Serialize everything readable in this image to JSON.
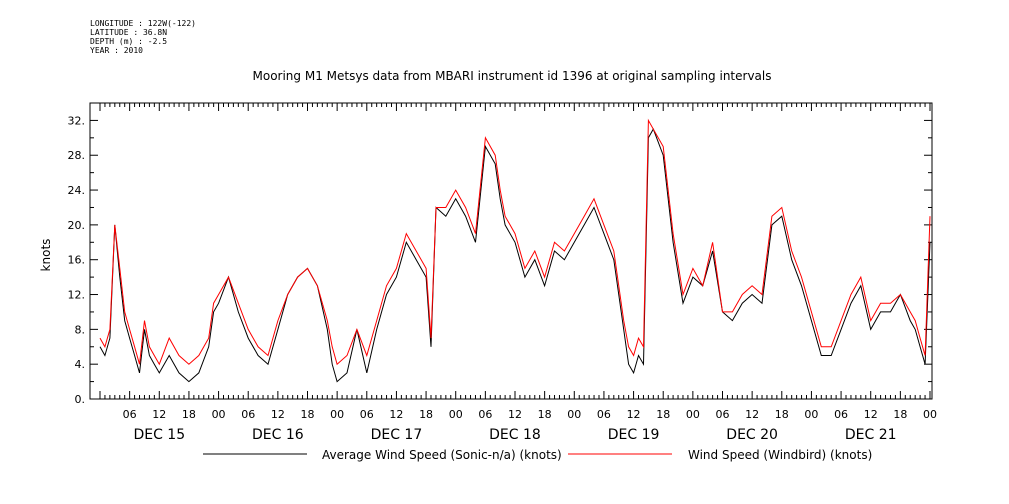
{
  "meta": {
    "longitude": "LONGITUDE : 122W(-122)",
    "latitude": "LATITUDE : 36.8N",
    "depth": "DEPTH (m) : -2.5",
    "year": "YEAR : 2010"
  },
  "chart_data": {
    "type": "line",
    "title": "Mooring M1 Metsys data from MBARI instrument id 1396 at original sampling intervals",
    "ylabel": "knots",
    "xlabel": "",
    "ylim": [
      0,
      34
    ],
    "yticks": [
      0,
      4,
      8,
      12,
      16,
      20,
      24,
      28,
      32
    ],
    "ytick_labels": [
      "0.",
      "4.",
      "8.",
      "12.",
      "16.",
      "20.",
      "24.",
      "28.",
      "32."
    ],
    "xlim_hours": [
      0,
      168
    ],
    "x_hour_ticks": [
      {
        "h": 6,
        "label": "06"
      },
      {
        "h": 12,
        "label": "12"
      },
      {
        "h": 18,
        "label": "18"
      },
      {
        "h": 24,
        "label": "00"
      },
      {
        "h": 30,
        "label": "06"
      },
      {
        "h": 36,
        "label": "12"
      },
      {
        "h": 42,
        "label": "18"
      },
      {
        "h": 48,
        "label": "00"
      },
      {
        "h": 54,
        "label": "06"
      },
      {
        "h": 60,
        "label": "12"
      },
      {
        "h": 66,
        "label": "18"
      },
      {
        "h": 72,
        "label": "00"
      },
      {
        "h": 78,
        "label": "06"
      },
      {
        "h": 84,
        "label": "12"
      },
      {
        "h": 90,
        "label": "18"
      },
      {
        "h": 96,
        "label": "00"
      },
      {
        "h": 102,
        "label": "06"
      },
      {
        "h": 108,
        "label": "12"
      },
      {
        "h": 114,
        "label": "18"
      },
      {
        "h": 120,
        "label": "00"
      },
      {
        "h": 126,
        "label": "06"
      },
      {
        "h": 132,
        "label": "12"
      },
      {
        "h": 138,
        "label": "18"
      },
      {
        "h": 144,
        "label": "00"
      },
      {
        "h": 150,
        "label": "06"
      },
      {
        "h": 156,
        "label": "12"
      },
      {
        "h": 162,
        "label": "18"
      },
      {
        "h": 168,
        "label": "00"
      }
    ],
    "x_day_labels": [
      {
        "h": 12,
        "label": "DEC 15"
      },
      {
        "h": 36,
        "label": "DEC 16"
      },
      {
        "h": 60,
        "label": "DEC 17"
      },
      {
        "h": 84,
        "label": "DEC 18"
      },
      {
        "h": 108,
        "label": "DEC 19"
      },
      {
        "h": 132,
        "label": "DEC 20"
      },
      {
        "h": 156,
        "label": "DEC 21"
      }
    ],
    "legend_position": "bottom",
    "series": [
      {
        "name": "Average Wind Speed (Sonic-n/a) (knots)",
        "color": "#000000",
        "x": [
          0,
          1,
          2,
          3,
          4,
          5,
          6,
          7,
          8,
          9,
          10,
          11,
          12,
          14,
          16,
          18,
          20,
          22,
          23,
          24,
          26,
          28,
          30,
          32,
          34,
          36,
          38,
          40,
          42,
          44,
          46,
          47,
          48,
          50,
          52,
          54,
          56,
          58,
          60,
          62,
          64,
          66,
          67,
          68,
          70,
          72,
          74,
          76,
          78,
          80,
          81,
          82,
          84,
          86,
          88,
          90,
          92,
          94,
          96,
          98,
          100,
          102,
          104,
          106,
          107,
          108,
          109,
          110,
          111,
          112,
          114,
          116,
          118,
          120,
          122,
          124,
          126,
          128,
          130,
          132,
          134,
          136,
          138,
          140,
          142,
          144,
          146,
          148,
          150,
          152,
          154,
          156,
          158,
          160,
          162,
          164,
          165,
          166,
          167,
          168
        ],
        "y": [
          6,
          5,
          7,
          20,
          14,
          9,
          7,
          5,
          3,
          8,
          5,
          4,
          3,
          5,
          3,
          2,
          3,
          6,
          10,
          11,
          14,
          10,
          7,
          5,
          4,
          8,
          12,
          14,
          15,
          13,
          8,
          4,
          2,
          3,
          8,
          3,
          8,
          12,
          14,
          18,
          16,
          14,
          6,
          22,
          21,
          23,
          21,
          18,
          29,
          27,
          23,
          20,
          18,
          14,
          16,
          13,
          17,
          16,
          18,
          20,
          22,
          19,
          16,
          8,
          4,
          3,
          5,
          4,
          30,
          31,
          28,
          18,
          11,
          14,
          13,
          17,
          10,
          9,
          11,
          12,
          11,
          20,
          21,
          16,
          13,
          9,
          5,
          5,
          8,
          11,
          13,
          8,
          10,
          10,
          12,
          9,
          8,
          6,
          4,
          18
        ]
      },
      {
        "name": "Wind Speed (Windbird) (knots)",
        "color": "#ff0000",
        "x": [
          0,
          1,
          2,
          3,
          4,
          5,
          6,
          7,
          8,
          9,
          10,
          11,
          12,
          14,
          16,
          18,
          20,
          22,
          23,
          24,
          26,
          28,
          30,
          32,
          34,
          36,
          38,
          40,
          42,
          44,
          46,
          47,
          48,
          50,
          52,
          54,
          56,
          58,
          60,
          62,
          64,
          66,
          67,
          68,
          70,
          72,
          74,
          76,
          78,
          80,
          81,
          82,
          84,
          86,
          88,
          90,
          92,
          94,
          96,
          98,
          100,
          102,
          104,
          106,
          107,
          108,
          109,
          110,
          111,
          112,
          114,
          116,
          118,
          120,
          122,
          124,
          126,
          128,
          130,
          132,
          134,
          136,
          138,
          140,
          142,
          144,
          146,
          148,
          150,
          152,
          154,
          156,
          158,
          160,
          162,
          164,
          165,
          166,
          167,
          168
        ],
        "y": [
          7,
          6,
          8,
          20,
          15,
          10,
          8,
          6,
          4,
          9,
          6,
          5,
          4,
          7,
          5,
          4,
          5,
          7,
          11,
          12,
          14,
          11,
          8,
          6,
          5,
          9,
          12,
          14,
          15,
          13,
          9,
          6,
          4,
          5,
          8,
          5,
          9,
          13,
          15,
          19,
          17,
          15,
          7,
          22,
          22,
          24,
          22,
          19,
          30,
          28,
          24,
          21,
          19,
          15,
          17,
          14,
          18,
          17,
          19,
          21,
          23,
          20,
          17,
          9,
          6,
          5,
          7,
          6,
          32,
          31,
          29,
          19,
          12,
          15,
          13,
          18,
          10,
          10,
          12,
          13,
          12,
          21,
          22,
          17,
          14,
          10,
          6,
          6,
          9,
          12,
          14,
          9,
          11,
          11,
          12,
          10,
          9,
          7,
          5,
          21
        ]
      }
    ]
  }
}
